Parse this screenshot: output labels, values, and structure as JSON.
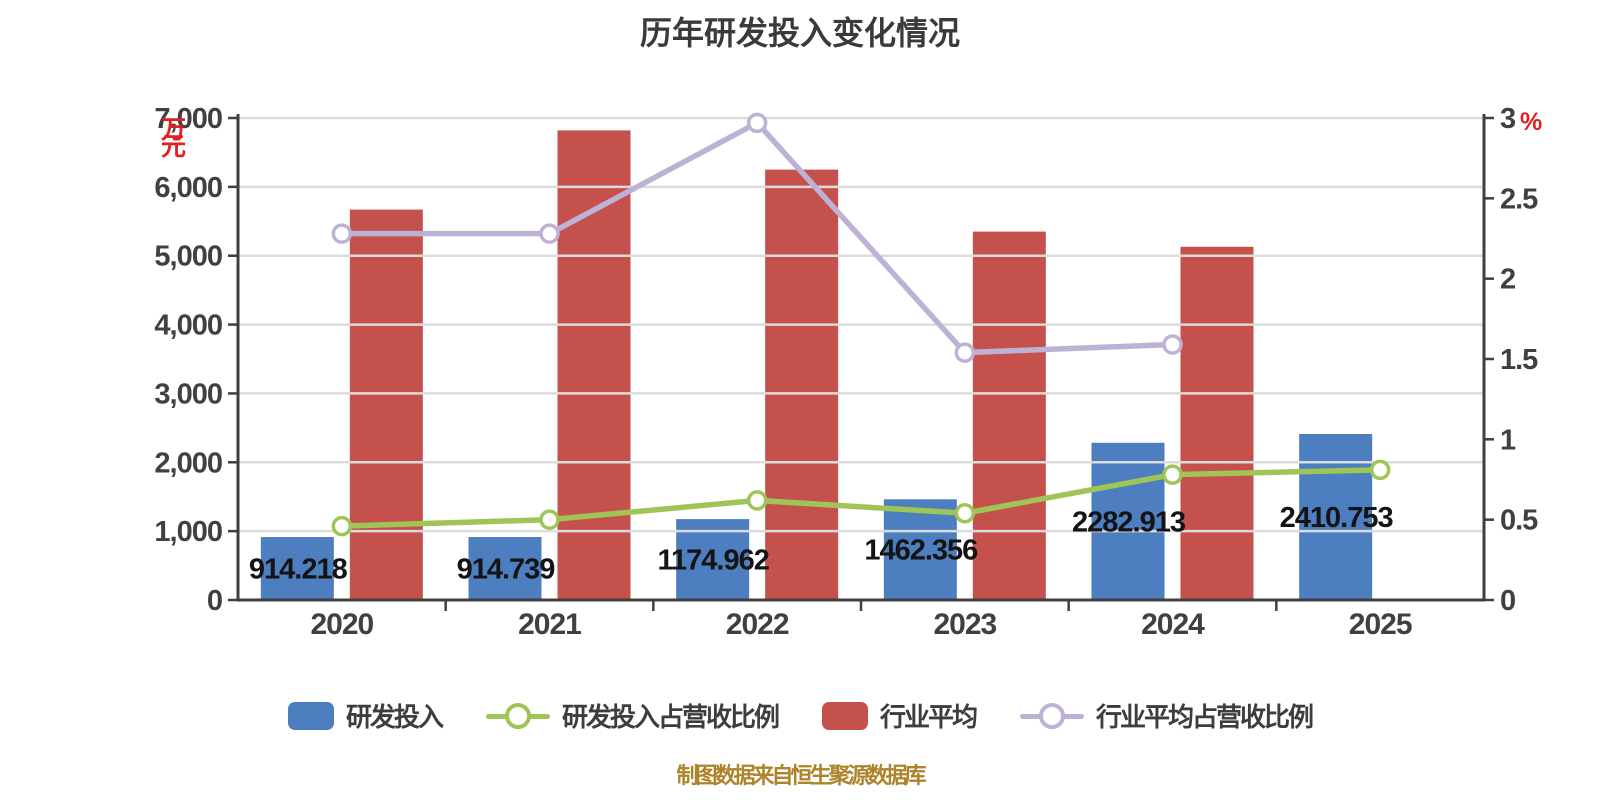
{
  "title": "历年研发投入变化情况",
  "caption": "制图数据来自恒生聚源数据库",
  "units": {
    "left": "万元",
    "right": "%"
  },
  "legend": {
    "items": [
      {
        "label": "研发投入",
        "marker": "bar"
      },
      {
        "label": "研发投入占营收比例",
        "marker": "line"
      },
      {
        "label": "行业平均",
        "marker": "bar"
      },
      {
        "label": "行业平均占营收比例",
        "marker": "line"
      }
    ]
  },
  "colors": {
    "bar_rnd": "#4d7ebf",
    "bar_industry": "#c5514d",
    "line_rnd_ratio": "#9ec556",
    "line_industry_ratio": "#bdb2d5",
    "grid": "#dcdcdc",
    "axis": "#3f3f3f",
    "tick_text": "#404040",
    "bar_label_text": "#141414",
    "unit_text": "#e01f1f"
  },
  "chart_data": {
    "type": "bar",
    "subtype": "grouped-bars-with-lines-dual-axis",
    "title": "历年研发投入变化情况",
    "categories": [
      "2020",
      "2021",
      "2022",
      "2023",
      "2024",
      "2025"
    ],
    "series": [
      {
        "name": "研发投入",
        "type": "bar",
        "axis": "left",
        "color": "#4d7ebf",
        "values": [
          914.218,
          914.739,
          1174.962,
          1462.356,
          2282.913,
          2410.753
        ],
        "labels": [
          "914.218",
          "914.739",
          "1174.962",
          "1462.356",
          "2282.913",
          "2410.753"
        ]
      },
      {
        "name": "研发投入占营收比例",
        "type": "line",
        "axis": "right",
        "color": "#9ec556",
        "values": [
          0.46,
          0.5,
          0.62,
          0.54,
          0.78,
          0.81
        ]
      },
      {
        "name": "行业平均",
        "type": "bar",
        "axis": "left",
        "color": "#c5514d",
        "values": [
          5670,
          6820,
          6250,
          5350,
          5130,
          null
        ]
      },
      {
        "name": "行业平均占营收比例",
        "type": "line",
        "axis": "right",
        "color": "#bdb2d5",
        "values": [
          2.28,
          2.28,
          2.97,
          1.54,
          1.59,
          null
        ]
      }
    ],
    "left_axis": {
      "label": "万元",
      "min": 0,
      "max": 7000,
      "step": 1000,
      "tick_labels": [
        "0",
        "1,000",
        "2,000",
        "3,000",
        "4,000",
        "5,000",
        "6,000",
        "7,000"
      ]
    },
    "right_axis": {
      "label": "%",
      "min": 0,
      "max": 3,
      "step": 0.5,
      "tick_labels": [
        "0",
        "0.5",
        "1",
        "1.5",
        "2",
        "2.5",
        "3"
      ]
    },
    "grid": "horizontal gridlines at each left-axis step, drawn over bars",
    "legend_position": "bottom"
  }
}
